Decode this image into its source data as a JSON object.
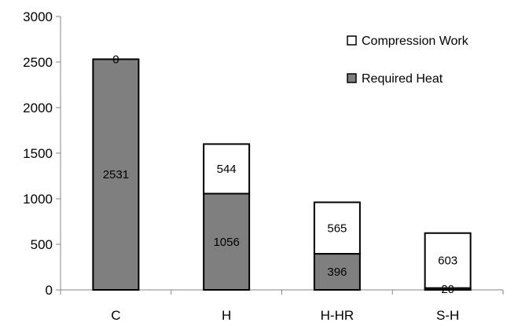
{
  "chart_data": {
    "type": "bar",
    "stacked": true,
    "categories": [
      "C",
      "H",
      "H-HR",
      "S-H"
    ],
    "series": [
      {
        "name": "Required Heat",
        "values": [
          2531,
          1056,
          396,
          20
        ],
        "color": "#7f7f7f"
      },
      {
        "name": "Compression Work",
        "values": [
          0,
          544,
          565,
          603
        ],
        "color": "#ffffff"
      }
    ],
    "yticks": [
      "0",
      "500",
      "1000",
      "1500",
      "2000",
      "2500",
      "3000"
    ],
    "ylim": [
      0,
      3000
    ],
    "grid": false,
    "legend_position": "top-right",
    "title": "",
    "xlabel": "",
    "ylabel": ""
  }
}
